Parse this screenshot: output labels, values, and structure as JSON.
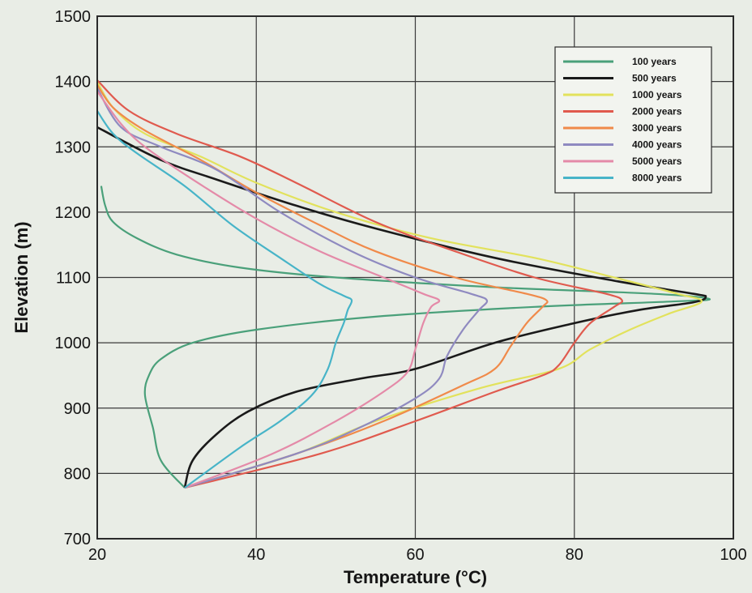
{
  "chart_data": {
    "type": "line",
    "title": "",
    "xlabel": "Temperature (°C)",
    "ylabel": "Elevation (m)",
    "xlim": [
      20,
      100
    ],
    "ylim": [
      700,
      1500
    ],
    "xticks": [
      20,
      40,
      60,
      80,
      100
    ],
    "yticks": [
      700,
      800,
      900,
      1000,
      1100,
      1200,
      1300,
      1400,
      1500
    ],
    "grid": true,
    "legend_position": "top-right",
    "series": [
      {
        "name": "100 years",
        "color": "#4aa07a",
        "points": [
          [
            31,
            778
          ],
          [
            28,
            820
          ],
          [
            27,
            870
          ],
          [
            26,
            920
          ],
          [
            26.5,
            950
          ],
          [
            28,
            975
          ],
          [
            32,
            1000
          ],
          [
            40,
            1020
          ],
          [
            55,
            1040
          ],
          [
            75,
            1055
          ],
          [
            92,
            1063
          ],
          [
            97,
            1067
          ],
          [
            90,
            1075
          ],
          [
            70,
            1085
          ],
          [
            50,
            1100
          ],
          [
            38,
            1115
          ],
          [
            30,
            1135
          ],
          [
            25,
            1160
          ],
          [
            22,
            1185
          ],
          [
            21,
            1210
          ],
          [
            20.5,
            1240
          ]
        ]
      },
      {
        "name": "500 years",
        "color": "#1a1a1a",
        "points": [
          [
            31,
            778
          ],
          [
            32,
            820
          ],
          [
            35,
            860
          ],
          [
            39,
            895
          ],
          [
            45,
            925
          ],
          [
            53,
            945
          ],
          [
            60,
            960
          ],
          [
            70,
            1000
          ],
          [
            80,
            1030
          ],
          [
            88,
            1050
          ],
          [
            95,
            1062
          ],
          [
            96.5,
            1070
          ],
          [
            95,
            1075
          ],
          [
            85,
            1095
          ],
          [
            70,
            1130
          ],
          [
            55,
            1175
          ],
          [
            45,
            1210
          ],
          [
            35,
            1250
          ],
          [
            28,
            1280
          ],
          [
            20,
            1330
          ]
        ]
      },
      {
        "name": "1000 years",
        "color": "#e2e25c",
        "points": [
          [
            31,
            778
          ],
          [
            45,
            830
          ],
          [
            55,
            880
          ],
          [
            68,
            930
          ],
          [
            78,
            960
          ],
          [
            82,
            990
          ],
          [
            87,
            1020
          ],
          [
            92,
            1045
          ],
          [
            96,
            1063
          ],
          [
            93,
            1075
          ],
          [
            85,
            1100
          ],
          [
            75,
            1130
          ],
          [
            62,
            1160
          ],
          [
            50,
            1200
          ],
          [
            40,
            1245
          ],
          [
            33,
            1285
          ],
          [
            26,
            1320
          ],
          [
            22,
            1360
          ],
          [
            20,
            1400
          ]
        ]
      },
      {
        "name": "2000 years",
        "color": "#e05a4e",
        "points": [
          [
            31,
            778
          ],
          [
            48,
            830
          ],
          [
            60,
            880
          ],
          [
            70,
            925
          ],
          [
            76,
            950
          ],
          [
            78,
            965
          ],
          [
            80,
            1000
          ],
          [
            82,
            1030
          ],
          [
            85,
            1055
          ],
          [
            86,
            1065
          ],
          [
            84,
            1075
          ],
          [
            75,
            1100
          ],
          [
            65,
            1140
          ],
          [
            55,
            1185
          ],
          [
            45,
            1245
          ],
          [
            38,
            1285
          ],
          [
            30,
            1320
          ],
          [
            24,
            1355
          ],
          [
            20,
            1402
          ]
        ]
      },
      {
        "name": "3000 years",
        "color": "#f08a4a",
        "points": [
          [
            31,
            778
          ],
          [
            45,
            830
          ],
          [
            56,
            880
          ],
          [
            66,
            935
          ],
          [
            70,
            960
          ],
          [
            72,
            995
          ],
          [
            74,
            1030
          ],
          [
            76,
            1055
          ],
          [
            76.5,
            1065
          ],
          [
            74,
            1075
          ],
          [
            65,
            1100
          ],
          [
            55,
            1140
          ],
          [
            48,
            1180
          ],
          [
            40,
            1230
          ],
          [
            33,
            1280
          ],
          [
            26,
            1325
          ],
          [
            22,
            1360
          ],
          [
            20,
            1395
          ]
        ]
      },
      {
        "name": "4000 years",
        "color": "#8f8ac0",
        "points": [
          [
            31,
            778
          ],
          [
            45,
            830
          ],
          [
            53,
            870
          ],
          [
            60,
            915
          ],
          [
            63,
            945
          ],
          [
            64,
            980
          ],
          [
            66,
            1020
          ],
          [
            68,
            1050
          ],
          [
            69,
            1065
          ],
          [
            67,
            1075
          ],
          [
            60,
            1100
          ],
          [
            52,
            1140
          ],
          [
            43,
            1200
          ],
          [
            35,
            1265
          ],
          [
            28,
            1300
          ],
          [
            23,
            1330
          ],
          [
            20,
            1390
          ]
        ]
      },
      {
        "name": "5000 years",
        "color": "#e48aa8",
        "points": [
          [
            31,
            778
          ],
          [
            42,
            830
          ],
          [
            50,
            880
          ],
          [
            56,
            925
          ],
          [
            59,
            955
          ],
          [
            60,
            990
          ],
          [
            61,
            1030
          ],
          [
            62,
            1055
          ],
          [
            63,
            1065
          ],
          [
            61,
            1075
          ],
          [
            56,
            1100
          ],
          [
            48,
            1140
          ],
          [
            40,
            1190
          ],
          [
            32,
            1250
          ],
          [
            26,
            1300
          ],
          [
            23,
            1335
          ],
          [
            20,
            1385
          ]
        ]
      },
      {
        "name": "8000 years",
        "color": "#47b4c8",
        "points": [
          [
            31,
            778
          ],
          [
            38,
            840
          ],
          [
            43,
            880
          ],
          [
            47,
            920
          ],
          [
            49,
            960
          ],
          [
            50,
            1000
          ],
          [
            51,
            1030
          ],
          [
            51.5,
            1050
          ],
          [
            52,
            1065
          ],
          [
            51,
            1072
          ],
          [
            48,
            1090
          ],
          [
            43,
            1130
          ],
          [
            37,
            1180
          ],
          [
            31,
            1240
          ],
          [
            25,
            1290
          ],
          [
            22,
            1320
          ],
          [
            20,
            1355
          ]
        ]
      }
    ]
  }
}
